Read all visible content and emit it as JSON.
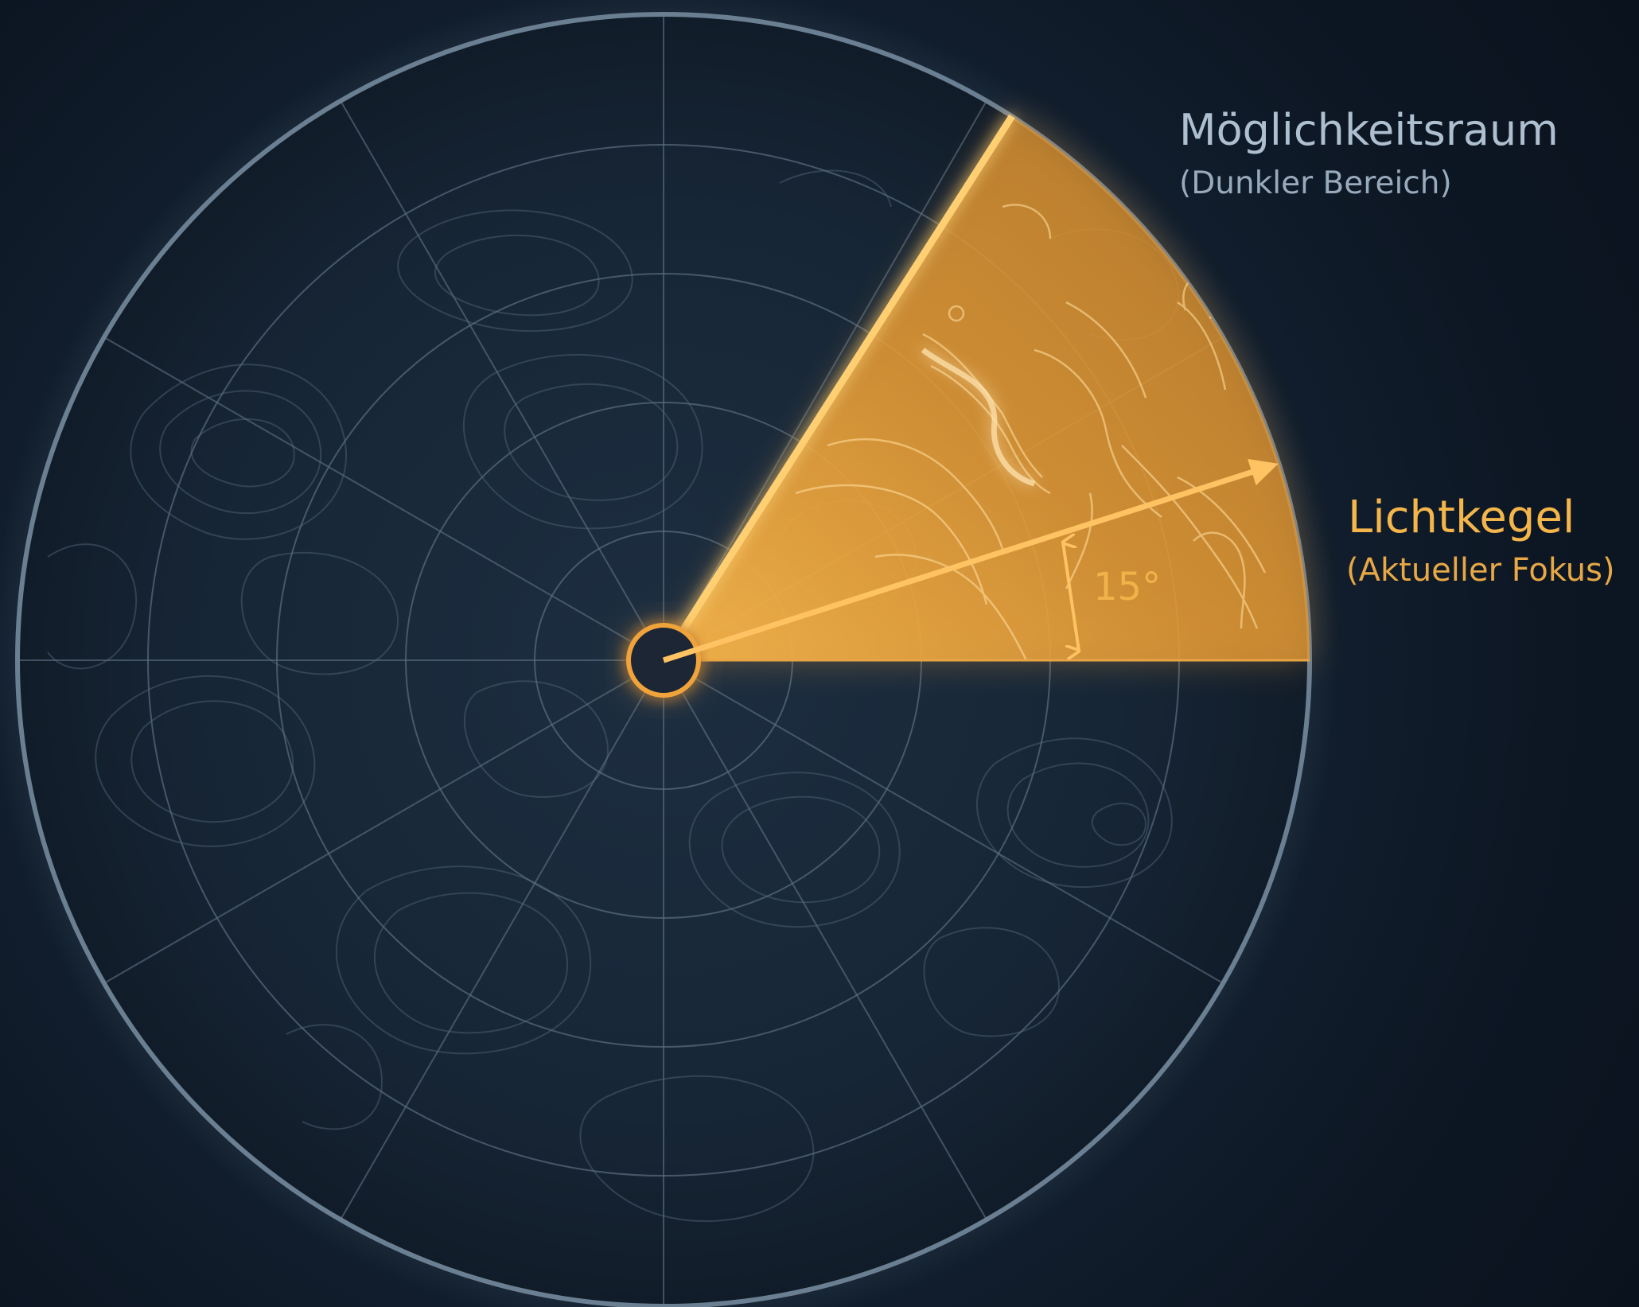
{
  "labels": {
    "possibility_space": "Möglichkeitsraum",
    "possibility_space_note": "(Dunkler Bereich)",
    "light_cone": "Lichtkegel",
    "light_cone_note": "(Aktueller Fokus)",
    "angle": "15°"
  },
  "colors": {
    "background": "#0c1420",
    "disc": "#172536",
    "rim": "#6b7f92",
    "grid": "#5c6e80",
    "contour": "#4a5c70",
    "cone": "#f0a33a",
    "cone_edge": "#ffcf72",
    "text_muted": "#aebfcf",
    "text_accent": "#f4b54a"
  },
  "diagram": {
    "ring_count": 5,
    "spoke_angles_deg": [
      0,
      30,
      60,
      90,
      120,
      150,
      180,
      210,
      240,
      270,
      300,
      330
    ],
    "cone_from_deg": 0,
    "cone_to_deg": 60,
    "focus_arrow_deg": 15
  }
}
